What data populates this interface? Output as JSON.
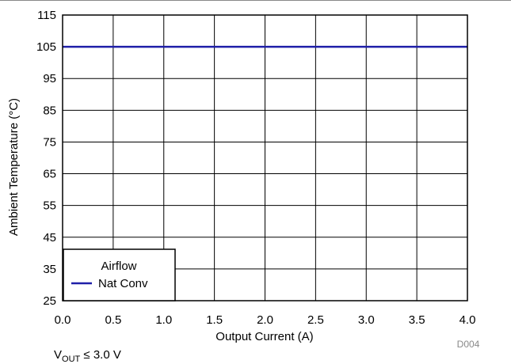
{
  "chart_data": {
    "type": "line",
    "xlabel": "Output Current (A)",
    "ylabel": "Ambient Temperature (°C)",
    "xlim": [
      0,
      4
    ],
    "ylim": [
      25,
      115
    ],
    "x_ticks": [
      "0.0",
      "0.5",
      "1.0",
      "1.5",
      "2.0",
      "2.5",
      "3.0",
      "3.5",
      "4.0"
    ],
    "y_ticks": [
      "25",
      "35",
      "45",
      "55",
      "65",
      "75",
      "85",
      "95",
      "105",
      "115"
    ],
    "grid": true,
    "legend": {
      "title": "Airflow",
      "placement": "bottom-left"
    },
    "series": [
      {
        "name": "Nat Conv",
        "color": "#1f1fa8",
        "x": [
          0,
          4
        ],
        "y": [
          105,
          105
        ]
      }
    ],
    "figure_id": "D004"
  },
  "condition": {
    "v": "V",
    "sub": "OUT",
    "rest": " ≤ 3.0 V"
  }
}
